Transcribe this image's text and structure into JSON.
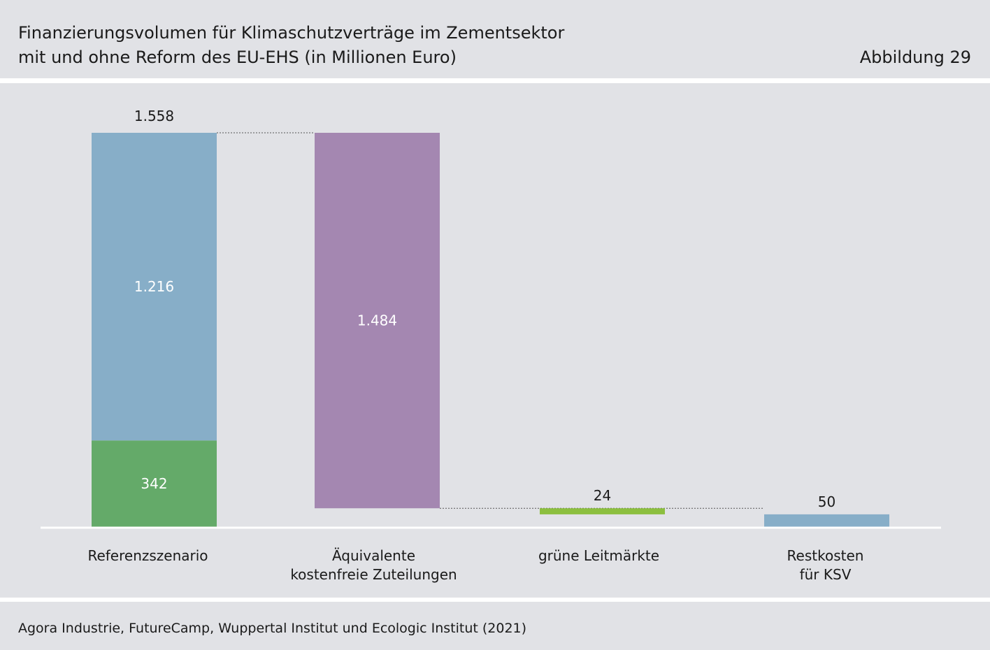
{
  "header": {
    "title_line1": "Finanzierungsvolumen für Klimaschutzverträge im Zementsektor",
    "title_line2": "mit und ohne Reform des EU-EHS (in Millionen Euro)",
    "figure_label": "Abbildung 29"
  },
  "footer": {
    "source": "Agora Industrie, FutureCamp, Wuppertal Institut und Ecologic Institut (2021)"
  },
  "colors": {
    "blue": "#87aec8",
    "green": "#64aa69",
    "purple": "#a487b1",
    "lime": "#8cbf3f",
    "background": "#e1e2e6"
  },
  "chart_data": {
    "type": "bar",
    "subtype": "waterfall",
    "ylim": [
      0,
      1600
    ],
    "categories": [
      {
        "id": "ref",
        "label_lines": [
          "Referenzszenario"
        ]
      },
      {
        "id": "aeq",
        "label_lines": [
          "Äquivalente",
          "kostenfreie Zuteilungen"
        ]
      },
      {
        "id": "gruen",
        "label_lines": [
          "grüne Leitmärkte"
        ]
      },
      {
        "id": "rest",
        "label_lines": [
          "Restkosten",
          "für KSV"
        ]
      }
    ],
    "segments": [
      {
        "id": "ref-bottom",
        "category": 0,
        "base": 0,
        "value": 342,
        "color": "green",
        "label": "342",
        "label_pos": "inside"
      },
      {
        "id": "ref-top",
        "category": 0,
        "base": 342,
        "value": 1216,
        "color": "blue",
        "label": "1.216",
        "label_pos": "inside"
      },
      {
        "id": "aeq",
        "category": 1,
        "base": 74,
        "value": 1484,
        "color": "purple",
        "label": "1.484",
        "label_pos": "inside"
      },
      {
        "id": "gruen",
        "category": 2,
        "base": 50,
        "value": 24,
        "color": "lime",
        "label": "24",
        "label_pos": "above"
      },
      {
        "id": "rest",
        "category": 3,
        "base": 0,
        "value": 50,
        "color": "blue",
        "label": "50",
        "label_pos": "above"
      }
    ],
    "totals": [
      {
        "category": 0,
        "value": 1558,
        "label": "1.558"
      }
    ],
    "connectors": [
      {
        "level": 1558,
        "from_category": 0,
        "to_category": 1
      },
      {
        "level": 74,
        "from_category": 1,
        "to_category": 3
      }
    ]
  }
}
